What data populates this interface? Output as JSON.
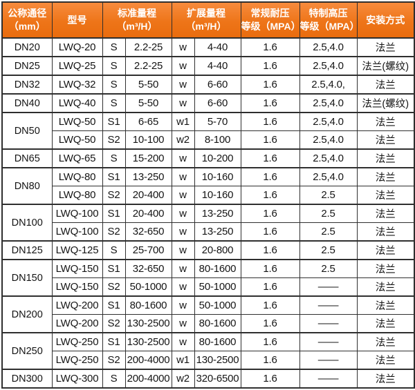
{
  "colors": {
    "header_bg_top": "#f78b3d",
    "header_bg": "#ee7519",
    "header_bg_bottom": "#e96c0e",
    "header_text": "#ffffff",
    "border": "#2e2e2e",
    "body_text": "#141414"
  },
  "headers": [
    {
      "l1": "公称通径",
      "l2": "（mm）"
    },
    {
      "l1": "型号",
      "l2": ""
    },
    {
      "l1": "标准量程",
      "l2": "（m³/H）"
    },
    {
      "l1": "扩展量程",
      "l2": "（m³/H）"
    },
    {
      "l1": "常规耐压",
      "l2": "等级（MPA）"
    },
    {
      "l1": "特制高压",
      "l2": "等级（MPA）"
    },
    {
      "l1": "安装方式",
      "l2": ""
    }
  ],
  "rows": [
    {
      "group_start": true,
      "dn": "DN20",
      "span": 1,
      "model": "LWQ-20",
      "s": "S",
      "std": "2.2-25",
      "w": "w",
      "ext": "4-40",
      "pn": "1.6",
      "hp": "2.5,4.0",
      "inst": "法兰"
    },
    {
      "group_start": true,
      "dn": "DN25",
      "span": 1,
      "model": "LWQ-25",
      "s": "S",
      "std": "2.2-25",
      "w": "w",
      "ext": "4-40",
      "pn": "1.6",
      "hp": "2.5,4.0",
      "inst": "法兰(螺纹)"
    },
    {
      "group_start": true,
      "dn": "DN32",
      "span": 1,
      "model": "LWQ-32",
      "s": "S",
      "std": "5-50",
      "w": "w",
      "ext": "6-60",
      "pn": "1.6",
      "hp": "2.5,4.0,",
      "inst": "法兰"
    },
    {
      "group_start": true,
      "dn": "DN40",
      "span": 1,
      "model": "LWQ-40",
      "s": "S",
      "std": "5-50",
      "w": "w",
      "ext": "6-60",
      "pn": "1.6",
      "hp": "2.5,4.0",
      "inst": "法兰(螺纹)"
    },
    {
      "group_start": true,
      "dn": "DN50",
      "span": 2,
      "model": "LWQ-50",
      "s": "S1",
      "std": "6-65",
      "w": "w1",
      "ext": "5-70",
      "pn": "1.6",
      "hp": "2.5,4.0",
      "inst": "法兰"
    },
    {
      "group_start": false,
      "model": "LWQ-50",
      "s": "S2",
      "std": "10-100",
      "w": "w2",
      "ext": "8-100",
      "pn": "1.6",
      "hp": "2.5,4.0",
      "inst": "法兰"
    },
    {
      "group_start": true,
      "dn": "DN65",
      "span": 1,
      "model": "LWQ-65",
      "s": "S",
      "std": "15-200",
      "w": "w",
      "ext": "10-200",
      "pn": "1.6",
      "hp": "2.5,4.0",
      "inst": "法兰"
    },
    {
      "group_start": true,
      "dn": "DN80",
      "span": 2,
      "model": "LWQ-80",
      "s": "S1",
      "std": "13-250",
      "w": "w",
      "ext": "10-160",
      "pn": "1.6",
      "hp": "2.5,4.0",
      "inst": "法兰"
    },
    {
      "group_start": false,
      "model": "LWQ-80",
      "s": "S2",
      "std": "20-400",
      "w": "w",
      "ext": "10-160",
      "pn": "1.6",
      "hp": "2.5",
      "inst": "法兰"
    },
    {
      "group_start": true,
      "dn": "DN100",
      "span": 2,
      "model": "LWQ-100",
      "s": "S1",
      "std": "20-400",
      "w": "w",
      "ext": "13-250",
      "pn": "1.6",
      "hp": "2.5",
      "inst": "法兰"
    },
    {
      "group_start": false,
      "model": "LWQ-100",
      "s": "S2",
      "std": "32-650",
      "w": "w",
      "ext": "13-250",
      "pn": "1.6",
      "hp": "2.5",
      "inst": "法兰"
    },
    {
      "group_start": true,
      "dn": "DN125",
      "span": 1,
      "model": "LWQ-125",
      "s": "S",
      "std": "25-700",
      "w": "w",
      "ext": "20-800",
      "pn": "1.6",
      "hp": "2.5",
      "inst": "法兰"
    },
    {
      "group_start": true,
      "dn": "DN150",
      "span": 2,
      "model": "LWQ-150",
      "s": "S1",
      "std": "32-650",
      "w": "w",
      "ext": "80-1600",
      "pn": "1.6",
      "hp": "2.5",
      "inst": "法兰"
    },
    {
      "group_start": false,
      "model": "LWQ-150",
      "s": "S2",
      "std": "50-1000",
      "w": "w",
      "ext": "50-1000",
      "pn": "1.6",
      "hp": "——",
      "inst": "法兰"
    },
    {
      "group_start": true,
      "dn": "DN200",
      "span": 2,
      "model": "LWQ-200",
      "s": "S1",
      "std": "80-1600",
      "w": "w",
      "ext": "50-1000",
      "pn": "1.6",
      "hp": "——",
      "inst": "法兰"
    },
    {
      "group_start": false,
      "model": "LWQ-200",
      "s": "S2",
      "std": "130-2500",
      "w": "w",
      "ext": "80-1600",
      "pn": "1.6",
      "hp": "——",
      "inst": "法兰"
    },
    {
      "group_start": true,
      "dn": "DN250",
      "span": 2,
      "model": "LWQ-250",
      "s": "S1",
      "std": "130-2500",
      "w": "w",
      "ext": "80-1600",
      "pn": "1.6",
      "hp": "——",
      "inst": "法兰"
    },
    {
      "group_start": false,
      "model": "LWQ-250",
      "s": "S2",
      "std": "200-4000",
      "w": "w1",
      "ext": "130-2500",
      "pn": "1.6",
      "hp": "——",
      "inst": "法兰"
    },
    {
      "group_start": true,
      "dn": "DN300",
      "span": 1,
      "model": "LWQ-300",
      "s": "S",
      "std": "200-4000",
      "w": "w2",
      "ext": "320-6500",
      "pn": "1.6",
      "hp": "——",
      "inst": "法兰"
    }
  ]
}
